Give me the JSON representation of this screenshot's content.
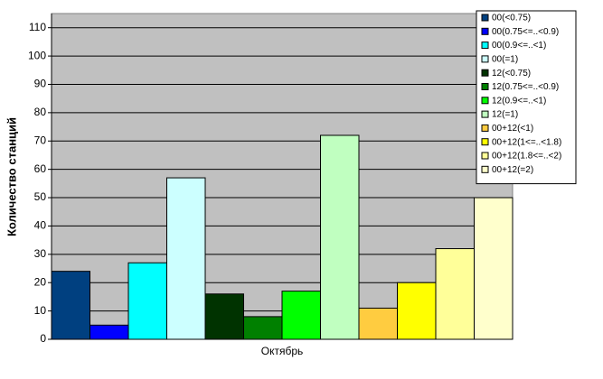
{
  "chart_data": {
    "type": "bar",
    "y_label": "Количество станций",
    "categories": [
      "Октябрь"
    ],
    "series": [
      {
        "name": "00(<0.75)",
        "color": "#004080",
        "values": [
          24
        ]
      },
      {
        "name": "00(0.75<=..<0.9)",
        "color": "#0000ff",
        "values": [
          5
        ]
      },
      {
        "name": "00(0.9<=..<1)",
        "color": "#00ffff",
        "values": [
          27
        ]
      },
      {
        "name": "00(=1)",
        "color": "#ccffff",
        "values": [
          57
        ]
      },
      {
        "name": "12(<0.75)",
        "color": "#003300",
        "values": [
          16
        ]
      },
      {
        "name": "12(0.75<=..<0.9)",
        "color": "#008000",
        "values": [
          8
        ]
      },
      {
        "name": "12(0.9<=..<1)",
        "color": "#00ff00",
        "values": [
          17
        ]
      },
      {
        "name": "12(=1)",
        "color": "#c0ffc0",
        "values": [
          72
        ]
      },
      {
        "name": "00+12(<1)",
        "color": "#ffcc40",
        "values": [
          11
        ]
      },
      {
        "name": "00+12(1<=..<1.8)",
        "color": "#ffff00",
        "values": [
          20
        ]
      },
      {
        "name": "00+12(1.8<=..<2)",
        "color": "#ffff99",
        "values": [
          32
        ]
      },
      {
        "name": "00+12(=2)",
        "color": "#ffffcc",
        "values": [
          50
        ]
      }
    ],
    "ylim": [
      0,
      115
    ],
    "yticks": [
      0,
      10,
      20,
      30,
      40,
      50,
      60,
      70,
      80,
      90,
      100,
      110
    ],
    "grid": true,
    "legend": "top-right"
  }
}
